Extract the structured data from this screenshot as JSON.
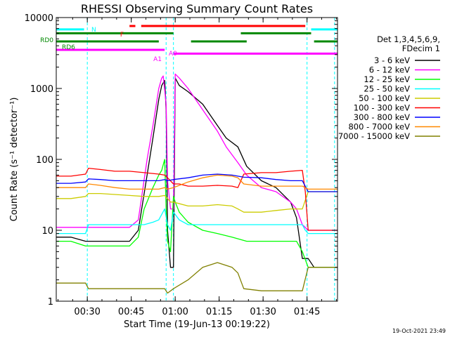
{
  "chart_data": {
    "type": "line",
    "title": "RHESSI Observing Summary Count Rates",
    "xlabel": "Start Time (19-Jun-13 00:19:22)",
    "ylabel": "Count Rate (s⁻¹ detector⁻¹)",
    "yscale": "log",
    "ylim": [
      1,
      10000
    ],
    "xlim_minutes": [
      0,
      96
    ],
    "x_ticks": [
      {
        "label": "00:30",
        "minute": 10.6
      },
      {
        "label": "00:45",
        "minute": 25.6
      },
      {
        "label": "01:00",
        "minute": 40.6
      },
      {
        "label": "01:15",
        "minute": 55.6
      },
      {
        "label": "01:30",
        "minute": 70.6
      },
      {
        "label": "01:45",
        "minute": 85.6
      }
    ],
    "y_ticks": [
      {
        "label": "1",
        "value": 1
      },
      {
        "label": "10",
        "value": 10
      },
      {
        "label": "100",
        "value": 100
      },
      {
        "label": "1000",
        "value": 1000
      },
      {
        "label": "10000",
        "value": 10000
      }
    ],
    "legend": {
      "header": [
        "Det 1,3,4,5,6,9,",
        "FDecim 1"
      ],
      "placement": "right"
    },
    "series": [
      {
        "name": "3 - 6 keV",
        "color": "#000000",
        "points": [
          [
            0,
            8
          ],
          [
            5,
            8
          ],
          [
            10,
            7
          ],
          [
            15,
            7
          ],
          [
            20,
            7
          ],
          [
            25,
            7
          ],
          [
            28,
            10
          ],
          [
            31,
            60
          ],
          [
            33,
            200
          ],
          [
            35,
            700
          ],
          [
            36,
            1100
          ],
          [
            37,
            1300
          ],
          [
            37.5,
            500
          ],
          [
            38,
            10
          ],
          [
            39,
            3
          ],
          [
            40,
            3
          ],
          [
            40.6,
            1400
          ],
          [
            42,
            1100
          ],
          [
            45,
            900
          ],
          [
            50,
            600
          ],
          [
            55,
            300
          ],
          [
            58,
            200
          ],
          [
            62,
            150
          ],
          [
            65,
            80
          ],
          [
            70,
            50
          ],
          [
            75,
            40
          ],
          [
            80,
            25
          ],
          [
            82,
            15
          ],
          [
            84,
            4
          ],
          [
            86,
            4
          ],
          [
            88,
            3
          ],
          [
            90,
            3
          ],
          [
            93,
            3
          ],
          [
            96,
            3
          ]
        ]
      },
      {
        "name": "6 - 12 keV",
        "color": "#ff00ff",
        "points": [
          [
            0,
            11
          ],
          [
            5,
            11
          ],
          [
            10,
            11
          ],
          [
            15,
            11
          ],
          [
            20,
            11
          ],
          [
            25,
            11
          ],
          [
            28,
            14
          ],
          [
            31,
            100
          ],
          [
            33,
            300
          ],
          [
            35,
            1000
          ],
          [
            36,
            1400
          ],
          [
            36.5,
            1500
          ],
          [
            37.5,
            600
          ],
          [
            38,
            50
          ],
          [
            39,
            20
          ],
          [
            40,
            20
          ],
          [
            40.6,
            1600
          ],
          [
            42,
            1400
          ],
          [
            45,
            1000
          ],
          [
            50,
            500
          ],
          [
            55,
            250
          ],
          [
            58,
            150
          ],
          [
            62,
            90
          ],
          [
            65,
            60
          ],
          [
            70,
            40
          ],
          [
            75,
            35
          ],
          [
            80,
            25
          ],
          [
            82,
            20
          ],
          [
            84,
            12
          ],
          [
            86,
            10
          ],
          [
            90,
            10
          ],
          [
            96,
            10
          ]
        ]
      },
      {
        "name": "12 - 25 keV",
        "color": "#00ff00",
        "points": [
          [
            0,
            7
          ],
          [
            5,
            7
          ],
          [
            10,
            6
          ],
          [
            15,
            6
          ],
          [
            20,
            6
          ],
          [
            25,
            6
          ],
          [
            28,
            8
          ],
          [
            30,
            20
          ],
          [
            33,
            40
          ],
          [
            35,
            60
          ],
          [
            36,
            70
          ],
          [
            37,
            100
          ],
          [
            37.5,
            20
          ],
          [
            38,
            7
          ],
          [
            39,
            5
          ],
          [
            40,
            30
          ],
          [
            40.6,
            25
          ],
          [
            42,
            18
          ],
          [
            45,
            13
          ],
          [
            50,
            10
          ],
          [
            55,
            9
          ],
          [
            60,
            8
          ],
          [
            65,
            7
          ],
          [
            70,
            7
          ],
          [
            75,
            7
          ],
          [
            80,
            7
          ],
          [
            82,
            7
          ],
          [
            84,
            5
          ],
          [
            86,
            3
          ],
          [
            88,
            3
          ],
          [
            96,
            3
          ]
        ]
      },
      {
        "name": "25 - 50 keV",
        "color": "#00ffff",
        "points": [
          [
            0,
            9
          ],
          [
            5,
            9
          ],
          [
            10,
            9
          ],
          [
            11,
            12
          ],
          [
            15,
            12
          ],
          [
            20,
            12
          ],
          [
            25,
            12
          ],
          [
            30,
            12
          ],
          [
            33,
            13
          ],
          [
            35,
            14
          ],
          [
            37,
            20
          ],
          [
            38,
            12
          ],
          [
            39,
            10
          ],
          [
            40,
            18
          ],
          [
            42,
            14
          ],
          [
            45,
            12
          ],
          [
            50,
            12
          ],
          [
            55,
            12
          ],
          [
            60,
            12
          ],
          [
            65,
            12
          ],
          [
            70,
            12
          ],
          [
            75,
            12
          ],
          [
            80,
            12
          ],
          [
            84,
            12
          ],
          [
            85,
            10
          ],
          [
            86,
            9
          ],
          [
            88,
            9
          ],
          [
            96,
            9
          ]
        ]
      },
      {
        "name": "50 - 100 keV",
        "color": "#cccc00",
        "points": [
          [
            0,
            28
          ],
          [
            5,
            28
          ],
          [
            10,
            30
          ],
          [
            11,
            33
          ],
          [
            15,
            33
          ],
          [
            20,
            32
          ],
          [
            25,
            31
          ],
          [
            30,
            30
          ],
          [
            35,
            30
          ],
          [
            37,
            31
          ],
          [
            38,
            28
          ],
          [
            39,
            25
          ],
          [
            40,
            25
          ],
          [
            45,
            22
          ],
          [
            50,
            22
          ],
          [
            55,
            23
          ],
          [
            60,
            22
          ],
          [
            62,
            20
          ],
          [
            64,
            18
          ],
          [
            65,
            18
          ],
          [
            70,
            18
          ],
          [
            75,
            19
          ],
          [
            80,
            20
          ],
          [
            84,
            20
          ],
          [
            86,
            35
          ],
          [
            88,
            35
          ],
          [
            96,
            35
          ]
        ]
      },
      {
        "name": "100 - 300 keV",
        "color": "#ff0000",
        "points": [
          [
            0,
            58
          ],
          [
            5,
            58
          ],
          [
            10,
            62
          ],
          [
            11,
            75
          ],
          [
            15,
            72
          ],
          [
            20,
            68
          ],
          [
            25,
            68
          ],
          [
            30,
            65
          ],
          [
            35,
            62
          ],
          [
            37,
            60
          ],
          [
            38,
            55
          ],
          [
            40,
            45
          ],
          [
            42,
            45
          ],
          [
            45,
            42
          ],
          [
            50,
            42
          ],
          [
            55,
            43
          ],
          [
            60,
            42
          ],
          [
            62,
            40
          ],
          [
            64,
            62
          ],
          [
            70,
            65
          ],
          [
            75,
            65
          ],
          [
            80,
            68
          ],
          [
            84,
            70
          ],
          [
            85,
            35
          ],
          [
            86,
            10
          ],
          [
            88,
            10
          ],
          [
            96,
            10
          ]
        ]
      },
      {
        "name": "300 - 800 keV",
        "color": "#0000ff",
        "points": [
          [
            0,
            46
          ],
          [
            5,
            46
          ],
          [
            10,
            48
          ],
          [
            11,
            53
          ],
          [
            15,
            52
          ],
          [
            20,
            50
          ],
          [
            25,
            50
          ],
          [
            30,
            50
          ],
          [
            35,
            50
          ],
          [
            37,
            52
          ],
          [
            38,
            50
          ],
          [
            40,
            52
          ],
          [
            45,
            55
          ],
          [
            50,
            60
          ],
          [
            55,
            62
          ],
          [
            60,
            60
          ],
          [
            62,
            58
          ],
          [
            64,
            56
          ],
          [
            70,
            55
          ],
          [
            75,
            52
          ],
          [
            80,
            50
          ],
          [
            84,
            50
          ],
          [
            86,
            35
          ],
          [
            88,
            35
          ],
          [
            96,
            35
          ]
        ]
      },
      {
        "name": "800 - 7000 keV",
        "color": "#ff8800",
        "points": [
          [
            0,
            40
          ],
          [
            5,
            40
          ],
          [
            10,
            40
          ],
          [
            11,
            45
          ],
          [
            15,
            43
          ],
          [
            20,
            40
          ],
          [
            25,
            38
          ],
          [
            30,
            38
          ],
          [
            35,
            38
          ],
          [
            37,
            40
          ],
          [
            38,
            38
          ],
          [
            40,
            40
          ],
          [
            45,
            48
          ],
          [
            50,
            55
          ],
          [
            55,
            60
          ],
          [
            60,
            58
          ],
          [
            62,
            55
          ],
          [
            64,
            45
          ],
          [
            70,
            42
          ],
          [
            75,
            42
          ],
          [
            80,
            42
          ],
          [
            84,
            42
          ],
          [
            86,
            38
          ],
          [
            88,
            38
          ],
          [
            96,
            38
          ]
        ]
      },
      {
        "name": "7000 - 15000 keV",
        "color": "#808000",
        "points": [
          [
            0,
            1.8
          ],
          [
            5,
            1.8
          ],
          [
            10,
            1.8
          ],
          [
            11,
            1.5
          ],
          [
            15,
            1.5
          ],
          [
            20,
            1.5
          ],
          [
            25,
            1.5
          ],
          [
            30,
            1.5
          ],
          [
            35,
            1.5
          ],
          [
            37,
            1.5
          ],
          [
            38,
            1.3
          ],
          [
            40,
            1.5
          ],
          [
            45,
            2
          ],
          [
            50,
            3
          ],
          [
            55,
            3.5
          ],
          [
            60,
            3
          ],
          [
            62,
            2.5
          ],
          [
            64,
            1.5
          ],
          [
            70,
            1.4
          ],
          [
            75,
            1.4
          ],
          [
            80,
            1.4
          ],
          [
            84,
            1.4
          ],
          [
            86,
            3
          ],
          [
            88,
            3
          ],
          [
            96,
            3
          ]
        ]
      }
    ],
    "flag_bars": [
      {
        "label": "N",
        "color": "#00ffff",
        "segments": [
          [
            0,
            9.5
          ],
          [
            87,
            96
          ]
        ],
        "level": 6800
      },
      {
        "label": "F",
        "color": "#ff0000",
        "segments": [
          [
            25,
            27
          ],
          [
            29,
            85
          ]
        ],
        "level": 7600
      },
      {
        "label": "RD0",
        "color": "#008800",
        "segments": [
          [
            0,
            40
          ],
          [
            63,
            87
          ]
        ],
        "level": 6000
      },
      {
        "label": "RD6",
        "color": "#008800",
        "segments": [
          [
            0,
            35
          ],
          [
            46,
            65
          ],
          [
            88,
            96
          ]
        ],
        "level": 4600
      },
      {
        "label": "A1",
        "color": "#ff00ff",
        "segments": [
          [
            0,
            37
          ]
        ],
        "level": 3500
      },
      {
        "label": "A0",
        "color": "#ff00ff",
        "segments": [
          [
            40,
            96
          ]
        ],
        "level": 3100
      }
    ],
    "vlines_minutes": [
      10.6,
      37.5,
      40.0,
      85.6,
      95.0
    ],
    "vline_color": "#00ffff"
  },
  "footer": {
    "timestamp": "19-Oct-2021 23:49"
  }
}
